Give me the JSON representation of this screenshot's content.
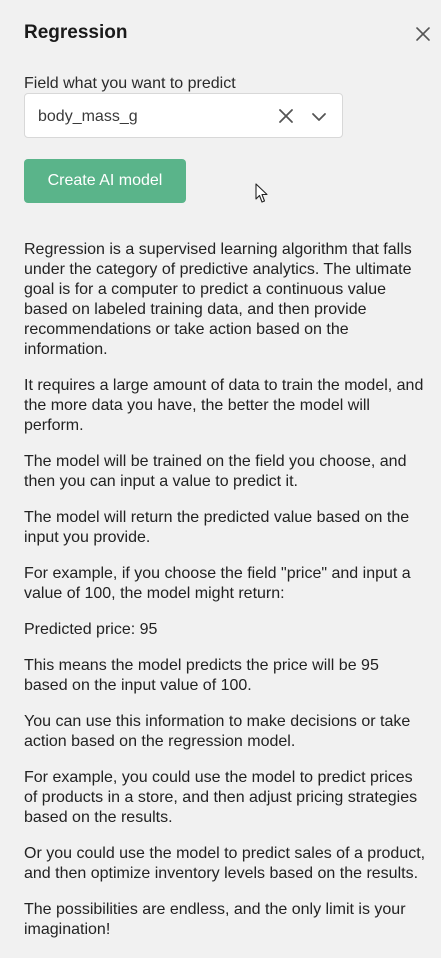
{
  "panel": {
    "title": "Regression",
    "close_icon": "close-icon"
  },
  "field": {
    "label": "Field what you want to predict",
    "value": "body_mass_g",
    "clear_icon": "clear-icon",
    "dropdown_icon": "chevron-down-icon"
  },
  "create_button": {
    "label": "Create AI model"
  },
  "description": {
    "paragraphs": [
      "Regression is a supervised learning algorithm that falls under the category of predictive analytics. The ultimate goal is for a computer to predict a continuous value based on labeled training data, and then provide recommendations or take action based on the information.",
      "It requires a large amount of data to train the model, and the more data you have, the better the model will perform.",
      "The model will be trained on the field you choose, and then you can input a value to predict it.",
      "The model will return the predicted value based on the input you provide.",
      "For example, if you choose the field \"price\" and input a value of 100, the model might return:",
      "Predicted price: 95",
      "This means the model predicts the price will be 95 based on the input value of 100.",
      "You can use this information to make decisions or take action based on the regression model.",
      "For example, you could use the model to predict prices of products in a store, and then adjust pricing strategies based on the results.",
      "Or you could use the model to predict sales of a product, and then optimize inventory levels based on the results.",
      "The possibilities are endless, and the only limit is your imagination!"
    ]
  },
  "colors": {
    "panel_bg": "#f1f1f1",
    "accent": "#5ab48a"
  }
}
